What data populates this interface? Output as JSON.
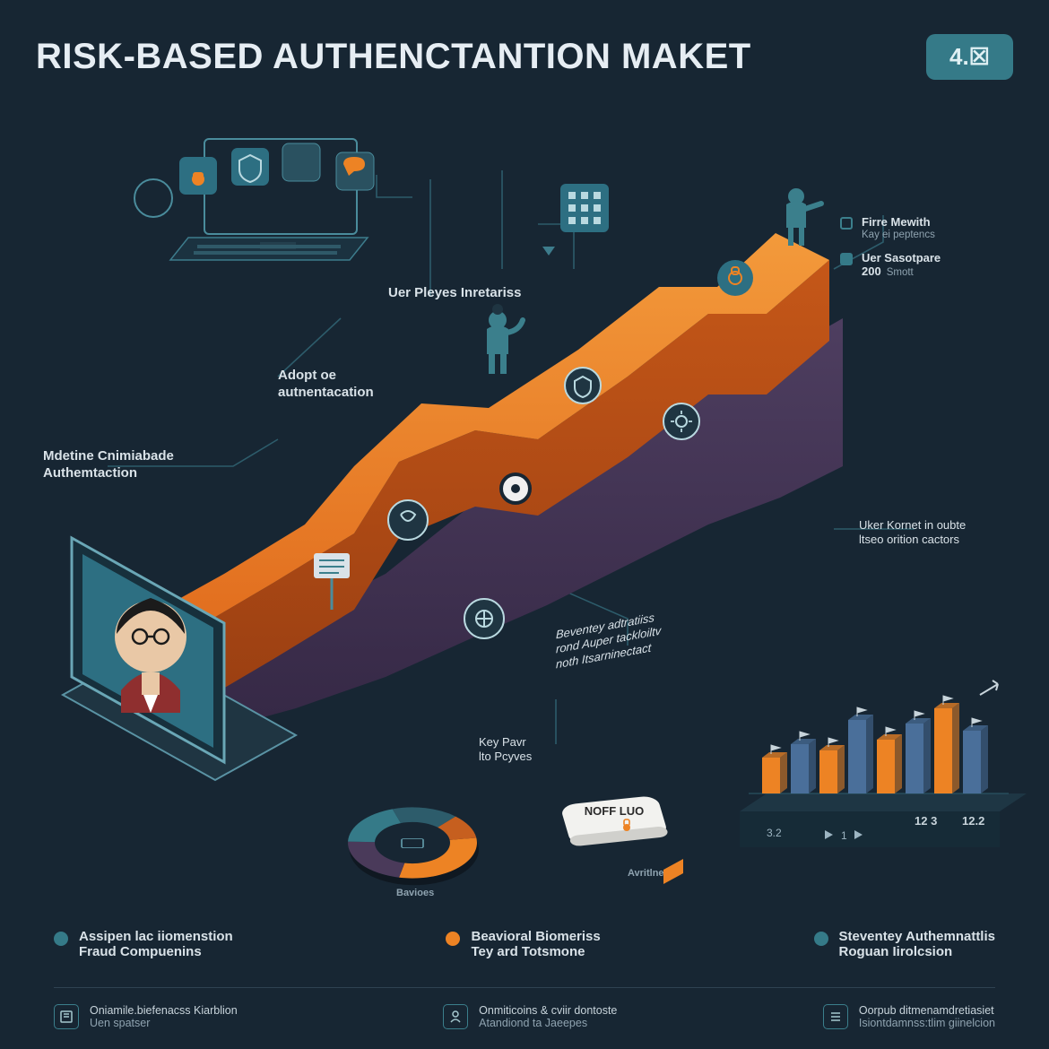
{
  "title_main": "RISK-BASED A",
  "title_mid": "UTHEnCTA",
  "title_mid2": "nTion MA",
  "title_end": "ket",
  "badge_text": "4.☒",
  "colors": {
    "bg": "#172633",
    "accent_teal": "#357a88",
    "orange": "#ed8324",
    "orange_dark": "#c65f1f",
    "purple": "#4a3a5a",
    "purple_dark": "#3a2d48",
    "line": "#2d5c6b",
    "ice": "#b9d9e0",
    "text": "#d9e2e8",
    "muted": "#8fa3b0",
    "red": "#9a3a3a",
    "blue_bar": "#3a6f8f"
  },
  "labels": {
    "uer_pleyes": "Uer Pleyes Inretariss",
    "adaptive_1": "Adopt oe",
    "adaptive_2": "autnentacation",
    "mdetine_1": "Mdetine Cnimiabade",
    "mdetine_2": "Authemtaction",
    "key_pavr_1": "Key Pavr",
    "key_pavr_2": "lto Pcyves",
    "beventey_1": "Beventey adtratiiss",
    "beventey_2": "rond Auper tackloiltv",
    "beventey_3": "noth Itsarninectact",
    "uker_1": "Uker Kornet in oubte",
    "uker_2": "ltseo orition cactors",
    "bavioes": "Bavioes",
    "device_label": "NOFF LUO",
    "avritline": "Avritlne"
  },
  "right_legend": {
    "item1_line1": "Firre Mewith",
    "item1_line2": "Kay ei peptencs",
    "item2_num": "200",
    "item2_line1": "Uer Sasotpare",
    "item2_line2": "Smott"
  },
  "bar_chart": {
    "values": [
      40,
      55,
      48,
      82,
      60,
      78,
      95,
      70
    ],
    "colors": [
      "#ed8324",
      "#4a6f9a",
      "#ed8324",
      "#4a6f9a",
      "#ed8324",
      "#4a6f9a",
      "#ed8324",
      "#4a6f9a"
    ],
    "ticks": [
      "3.2",
      "12 3",
      "12.2"
    ],
    "tick_right": "1 ▶"
  },
  "donut": {
    "slices": [
      {
        "color": "#ed8324",
        "start": 0,
        "end": 110
      },
      {
        "color": "#4a3a5a",
        "start": 110,
        "end": 170
      },
      {
        "color": "#357a88",
        "start": 170,
        "end": 250
      },
      {
        "color": "#2d5c6b",
        "start": 250,
        "end": 310
      },
      {
        "color": "#c65f1f",
        "start": 310,
        "end": 360
      }
    ]
  },
  "legend_dots": [
    {
      "color": "#357a88",
      "line1": "Assipen lac iiomenstion",
      "line2": "Fraud Compuenins"
    },
    {
      "color": "#ed8324",
      "line1": "Beavioral Biomeriss",
      "line2": "Tey ard Totsmone"
    },
    {
      "color": "#357a88",
      "line1": "Steventey Authemnattlis",
      "line2": "Roguan Iirolcsion"
    }
  ],
  "footer_items": [
    {
      "icon": "book",
      "line1": "Oniamile.biefenacss Kiarblion",
      "line2": "Uen spatser"
    },
    {
      "icon": "person",
      "line1": "Onmiticoins & cviir dontoste",
      "line2": "Atandiond ta Jaeepes"
    },
    {
      "icon": "list",
      "line1": "Oorpub ditmenamdretiasiet",
      "line2": "Isiontdamnss:tlim giinelcion"
    }
  ]
}
